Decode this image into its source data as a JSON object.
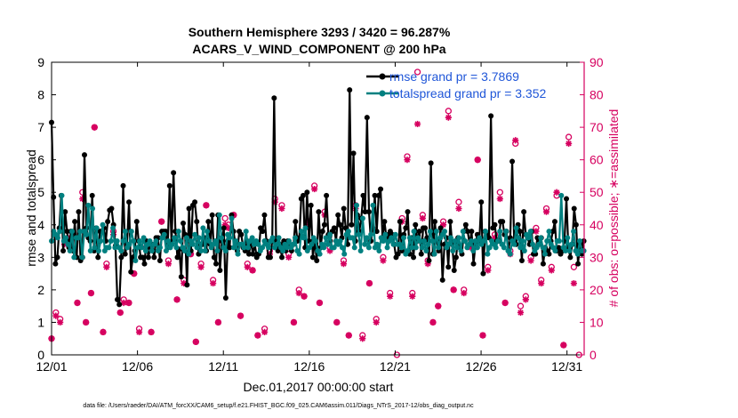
{
  "chart_data": {
    "type": "line",
    "title": "Southern Hemisphere 3293 / 3420 = 96.287%",
    "subtitle": "ACARS_V_WIND_COMPONENT @ 200 hPa",
    "xlabel": "Dec.01,2017 00:00:00 start",
    "ylabel": "rmse and totalspread",
    "ylabel_right": "# of obs: o=possible; ∗=assimilated",
    "footnote": "data file: /Users/raeder/DAI/ATM_forcXX/CAM6_setup/f.e21.FHIST_BGC.f09_025.CAM6assim.011/Diags_NTrS_2017-12/obs_diag_output.nc",
    "xlim": [
      1,
      32
    ],
    "ylim": [
      0,
      9
    ],
    "ylim_right": [
      0,
      90
    ],
    "xticks": [
      1,
      6,
      11,
      16,
      21,
      26,
      31
    ],
    "xtick_labels": [
      "12/01",
      "12/06",
      "12/11",
      "12/16",
      "12/21",
      "12/26",
      "12/31"
    ],
    "yticks": [
      0,
      1,
      2,
      3,
      4,
      5,
      6,
      7,
      8,
      9
    ],
    "yticks_right": [
      0,
      10,
      20,
      30,
      40,
      50,
      60,
      70,
      80,
      90
    ],
    "colors": {
      "rmse": "#000000",
      "totalspread": "#008080",
      "obs": "#d6005f",
      "legend_text": "#1f56d8"
    },
    "legend": {
      "placement": "top-right",
      "entries": [
        "rmse grand pr = 3.7869",
        "totalspread grand pr = 3.352"
      ]
    },
    "series": [
      {
        "name": "rmse",
        "values": [
          7.15,
          4.85,
          2.8,
          3.0,
          3.9,
          4.9,
          3.2,
          4.4,
          3.8,
          3.3,
          3.8,
          3.2,
          4.1,
          3.0,
          4.4,
          2.9,
          3.0,
          6.15,
          3.9,
          3.6,
          3.5,
          4.9,
          3.2,
          3.9,
          3.0,
          3.8,
          3.8,
          3.9,
          3.5,
          4.1,
          4.45,
          4.5,
          4.0,
          3.35,
          1.7,
          1.55,
          3.0,
          5.2,
          3.1,
          3.4,
          4.7,
          2.55,
          3.0,
          3.2,
          4.1,
          3.5,
          3.0,
          3.0,
          2.8,
          3.5,
          3.0,
          3.3,
          3.4,
          3.0,
          3.6,
          3.6,
          2.9,
          3.8,
          3.8,
          3.8,
          3.3,
          5.2,
          3.4,
          5.6,
          3.8,
          3.0,
          3.25,
          2.4,
          4.05,
          3.7,
          2.15,
          4.5,
          3.2,
          4.6,
          4.7,
          4.1,
          3.1,
          3.4,
          3.4,
          3.6,
          3.2,
          4.1,
          3.4,
          4.3,
          3.0,
          2.8,
          4.3,
          2.6,
          3.5,
          3.9,
          1.75,
          3.5,
          3.3,
          4.3,
          3.8,
          3.4,
          3.2,
          3.8,
          3.7,
          3.3,
          3.2,
          3.5,
          3.1,
          3.5,
          3.1,
          3.4,
          3.0,
          3.1,
          3.9,
          3.8,
          4.3,
          3.5,
          3.0,
          3.0,
          3.5,
          7.9,
          3.5,
          3.2,
          3.4,
          3.0,
          3.5,
          3.2,
          3.5,
          3.4,
          3.2,
          3.4,
          4.1,
          3.5,
          3.6,
          4.8,
          4.9,
          3.3,
          5.0,
          3.5,
          4.6,
          3.0,
          3.5,
          2.9,
          4.4,
          3.3,
          3.8,
          4.0,
          4.9,
          3.7,
          3.5,
          3.8,
          3.9,
          3.5,
          4.3,
          4.0,
          3.6,
          4.5,
          3.9,
          3.4,
          8.15,
          4.0,
          6.2,
          3.5,
          4.3,
          3.8,
          4.2,
          4.9,
          4.4,
          7.3,
          4.4,
          3.5,
          3.9,
          4.9,
          3.8,
          4.9,
          5.1,
          3.6,
          4.1,
          3.6,
          3.7,
          3.8,
          3.7,
          3.4,
          3.0,
          3.1,
          4.1,
          3.2,
          3.7,
          3.9,
          4.4,
          3.1,
          3.6,
          3.0,
          4.0,
          3.5,
          3.8,
          3.1,
          3.9,
          3.9,
          3.6,
          2.9,
          5.9,
          3.1,
          4.1,
          3.5,
          3.2,
          3.9,
          2.3,
          3.4,
          3.6,
          2.7,
          4.1,
          3.4,
          2.6,
          3.0,
          3.6,
          3.3,
          3.1,
          3.8,
          4.0,
          3.8,
          3.4,
          3.8,
          2.8,
          3.4,
          3.7,
          3.5,
          4.7,
          2.5,
          3.8,
          3.7,
          3.6,
          7.35,
          3.9,
          4.0,
          3.5,
          3.5,
          4.1,
          4.1,
          3.7,
          3.8,
          3.2,
          3.6,
          5.95,
          3.5,
          3.4,
          4.0,
          3.8,
          2.9,
          4.4,
          3.7,
          3.6,
          3.4,
          3.8,
          3.1,
          3.1,
          3.6,
          3.4,
          3.6,
          2.8,
          3.3,
          3.2,
          3.1,
          3.5,
          3.8,
          4.1,
          3.2,
          3.3,
          3.1,
          3.2,
          3.5,
          4.8,
          3.3,
          3.0,
          3.4,
          4.5,
          4.0,
          2.8,
          3.4,
          3.1,
          3.5
        ]
      },
      {
        "name": "totalspread",
        "values": [
          3.5,
          3.8,
          3.7,
          3.6,
          3.8,
          4.9,
          3.5,
          3.6,
          3.4,
          3.2,
          3.8,
          3.0,
          3.6,
          3.6,
          3.8,
          3.0,
          3.8,
          3.7,
          4.6,
          3.2,
          4.5,
          3.3,
          3.9,
          3.2,
          3.5,
          4.0,
          3.2,
          3.3,
          3.3,
          3.5,
          3.9,
          3.3,
          3.5,
          3.3,
          3.2,
          3.5,
          3.8,
          3.3,
          3.4,
          3.8,
          3.5,
          2.9,
          3.3,
          3.5,
          3.3,
          3.6,
          3.2,
          3.4,
          3.5,
          3.2,
          3.4,
          3.5,
          3.2,
          3.3,
          3.6,
          3.7,
          3.2,
          3.5,
          3.3,
          3.4,
          3.6,
          3.3,
          3.8,
          3.5,
          3.3,
          3.2,
          3.6,
          3.1,
          3.5,
          3.4,
          3.7,
          3.3,
          3.6,
          3.2,
          3.9,
          3.2,
          3.8,
          3.5,
          3.3,
          3.4,
          3.5,
          3.2,
          4.3,
          3.6,
          3.3,
          3.2,
          3.7,
          3.6,
          4.2,
          3.3,
          3.5,
          3.1,
          3.4,
          3.4,
          3.3,
          3.8,
          3.3,
          3.5,
          3.6,
          3.4,
          3.5,
          3.4,
          3.2,
          3.3,
          3.5,
          3.4,
          3.3,
          3.5,
          3.6,
          3.3,
          3.4,
          3.6,
          3.3,
          3.2,
          3.4,
          3.3,
          3.5,
          3.3,
          3.4,
          3.6,
          3.2,
          3.1,
          3.8,
          3.6,
          3.9,
          3.2,
          3.3,
          3.4,
          3.6,
          3.5,
          3.2,
          3.1,
          3.4,
          3.3,
          3.6,
          3.4,
          3.7,
          3.3,
          3.3,
          3.5,
          3.4,
          3.5,
          3.3,
          3.1,
          3.7,
          3.8,
          3.6,
          3.6,
          3.3,
          4.6,
          3.7,
          3.2,
          4.2,
          3.4,
          3.6,
          3.3,
          3.7,
          4.6,
          3.3,
          3.4,
          3.2,
          3.6,
          3.5,
          3.7,
          3.3,
          3.5,
          3.6,
          3.4,
          3.7,
          3.4,
          3.4,
          3.3,
          3.6,
          3.1,
          3.2,
          3.6,
          3.3,
          3.8,
          3.3,
          3.6,
          3.5,
          3.3,
          3.5,
          3.2,
          3.4,
          3.8,
          3.5,
          3.1,
          3.8,
          3.3,
          3.6,
          3.7,
          3.8,
          3.3,
          3.4,
          3.6,
          3.2,
          3.5,
          3.3,
          3.6,
          3.2,
          3.8,
          3.5,
          3.3,
          3.4,
          3.5,
          3.2,
          3.5,
          3.3,
          3.6,
          3.4,
          3.5,
          3.8,
          3.1,
          3.3,
          3.5,
          3.4,
          3.3,
          3.5,
          3.8,
          3.4,
          3.3,
          3.8,
          3.2,
          3.1,
          3.5,
          3.4,
          3.9,
          3.6,
          3.3,
          3.5,
          3.2,
          3.7,
          3.6,
          3.8,
          3.4,
          3.2,
          3.3,
          3.4,
          3.6,
          3.3,
          3.1,
          3.5,
          3.8,
          3.4,
          3.3,
          3.2,
          3.5,
          3.5,
          4.9,
          3.3,
          3.2,
          3.6,
          3.2,
          3.4,
          3.8,
          3.2,
          3.1,
          3.5,
          3.2,
          3.2
        ]
      }
    ],
    "obs_possible": [
      {
        "x": 1.0,
        "y": 5
      },
      {
        "x": 1.25,
        "y": 13
      },
      {
        "x": 1.5,
        "y": 11
      },
      {
        "x": 1.75,
        "y": 35
      },
      {
        "x": 2.1,
        "y": 37
      },
      {
        "x": 2.5,
        "y": 16
      },
      {
        "x": 2.8,
        "y": 50
      },
      {
        "x": 3.0,
        "y": 10
      },
      {
        "x": 3.3,
        "y": 19
      },
      {
        "x": 3.5,
        "y": 70
      },
      {
        "x": 4.0,
        "y": 7
      },
      {
        "x": 4.2,
        "y": 28
      },
      {
        "x": 4.6,
        "y": 38
      },
      {
        "x": 5.0,
        "y": 13
      },
      {
        "x": 5.2,
        "y": 17
      },
      {
        "x": 5.5,
        "y": 16
      },
      {
        "x": 5.8,
        "y": 25
      },
      {
        "x": 6.1,
        "y": 8
      },
      {
        "x": 6.5,
        "y": 33
      },
      {
        "x": 6.8,
        "y": 7
      },
      {
        "x": 7.4,
        "y": 41
      },
      {
        "x": 7.8,
        "y": 29
      },
      {
        "x": 8.3,
        "y": 17
      },
      {
        "x": 8.7,
        "y": 23
      },
      {
        "x": 9.1,
        "y": 31
      },
      {
        "x": 9.4,
        "y": 4
      },
      {
        "x": 9.7,
        "y": 28
      },
      {
        "x": 10.0,
        "y": 46
      },
      {
        "x": 10.4,
        "y": 23
      },
      {
        "x": 10.7,
        "y": 10
      },
      {
        "x": 11.1,
        "y": 42
      },
      {
        "x": 11.3,
        "y": 40
      },
      {
        "x": 11.6,
        "y": 43
      },
      {
        "x": 12.0,
        "y": 12
      },
      {
        "x": 12.4,
        "y": 28
      },
      {
        "x": 12.7,
        "y": 26
      },
      {
        "x": 13.0,
        "y": 6
      },
      {
        "x": 13.4,
        "y": 8
      },
      {
        "x": 13.7,
        "y": 32
      },
      {
        "x": 14.0,
        "y": 48
      },
      {
        "x": 14.4,
        "y": 46
      },
      {
        "x": 14.8,
        "y": 31
      },
      {
        "x": 15.1,
        "y": 10
      },
      {
        "x": 15.4,
        "y": 20
      },
      {
        "x": 15.7,
        "y": 18
      },
      {
        "x": 16.0,
        "y": 41
      },
      {
        "x": 16.3,
        "y": 52
      },
      {
        "x": 16.6,
        "y": 16
      },
      {
        "x": 16.9,
        "y": 44
      },
      {
        "x": 17.2,
        "y": 33
      },
      {
        "x": 17.6,
        "y": 10
      },
      {
        "x": 18.0,
        "y": 29
      },
      {
        "x": 18.3,
        "y": 6
      },
      {
        "x": 18.7,
        "y": 46
      },
      {
        "x": 19.1,
        "y": 6
      },
      {
        "x": 19.5,
        "y": 22
      },
      {
        "x": 19.9,
        "y": 11
      },
      {
        "x": 20.3,
        "y": 30
      },
      {
        "x": 20.7,
        "y": 19
      },
      {
        "x": 21.1,
        "y": 0
      },
      {
        "x": 21.4,
        "y": 42
      },
      {
        "x": 21.7,
        "y": 61
      },
      {
        "x": 22.0,
        "y": 19
      },
      {
        "x": 22.3,
        "y": 87
      },
      {
        "x": 22.6,
        "y": 43
      },
      {
        "x": 22.9,
        "y": 29
      },
      {
        "x": 23.2,
        "y": 10
      },
      {
        "x": 23.5,
        "y": 15
      },
      {
        "x": 23.8,
        "y": 41
      },
      {
        "x": 24.1,
        "y": 75
      },
      {
        "x": 24.4,
        "y": 20
      },
      {
        "x": 24.7,
        "y": 47
      },
      {
        "x": 25.0,
        "y": 20
      },
      {
        "x": 25.4,
        "y": 34
      },
      {
        "x": 25.8,
        "y": 60
      },
      {
        "x": 26.1,
        "y": 6
      },
      {
        "x": 26.4,
        "y": 27
      },
      {
        "x": 26.8,
        "y": 37
      },
      {
        "x": 27.1,
        "y": 50
      },
      {
        "x": 27.4,
        "y": 16
      },
      {
        "x": 27.7,
        "y": 32
      },
      {
        "x": 28.0,
        "y": 65
      },
      {
        "x": 28.3,
        "y": 15
      },
      {
        "x": 28.6,
        "y": 18
      },
      {
        "x": 28.9,
        "y": 30
      },
      {
        "x": 29.2,
        "y": 39
      },
      {
        "x": 29.5,
        "y": 23
      },
      {
        "x": 29.8,
        "y": 45
      },
      {
        "x": 30.1,
        "y": 27
      },
      {
        "x": 30.4,
        "y": 49
      },
      {
        "x": 30.8,
        "y": 3
      },
      {
        "x": 31.1,
        "y": 67
      },
      {
        "x": 31.4,
        "y": 27
      },
      {
        "x": 31.7,
        "y": 0
      }
    ],
    "obs_assimilated": [
      {
        "x": 1.0,
        "y": 5
      },
      {
        "x": 1.25,
        "y": 12
      },
      {
        "x": 1.5,
        "y": 10
      },
      {
        "x": 1.75,
        "y": 34
      },
      {
        "x": 2.1,
        "y": 36
      },
      {
        "x": 2.5,
        "y": 16
      },
      {
        "x": 2.8,
        "y": 48
      },
      {
        "x": 3.0,
        "y": 10
      },
      {
        "x": 3.3,
        "y": 19
      },
      {
        "x": 3.5,
        "y": 70
      },
      {
        "x": 4.0,
        "y": 7
      },
      {
        "x": 4.2,
        "y": 27
      },
      {
        "x": 4.6,
        "y": 37
      },
      {
        "x": 5.0,
        "y": 13
      },
      {
        "x": 5.2,
        "y": 16
      },
      {
        "x": 5.5,
        "y": 16
      },
      {
        "x": 5.8,
        "y": 25
      },
      {
        "x": 6.1,
        "y": 7
      },
      {
        "x": 6.5,
        "y": 33
      },
      {
        "x": 6.8,
        "y": 7
      },
      {
        "x": 7.4,
        "y": 41
      },
      {
        "x": 7.8,
        "y": 28
      },
      {
        "x": 8.3,
        "y": 17
      },
      {
        "x": 8.7,
        "y": 22
      },
      {
        "x": 9.1,
        "y": 31
      },
      {
        "x": 9.4,
        "y": 4
      },
      {
        "x": 9.7,
        "y": 27
      },
      {
        "x": 10.0,
        "y": 46
      },
      {
        "x": 10.4,
        "y": 22
      },
      {
        "x": 10.7,
        "y": 10
      },
      {
        "x": 11.1,
        "y": 40
      },
      {
        "x": 11.3,
        "y": 39
      },
      {
        "x": 11.6,
        "y": 43
      },
      {
        "x": 12.0,
        "y": 12
      },
      {
        "x": 12.4,
        "y": 27
      },
      {
        "x": 12.7,
        "y": 26
      },
      {
        "x": 13.0,
        "y": 6
      },
      {
        "x": 13.4,
        "y": 7
      },
      {
        "x": 13.7,
        "y": 31
      },
      {
        "x": 14.0,
        "y": 47
      },
      {
        "x": 14.4,
        "y": 45
      },
      {
        "x": 14.8,
        "y": 30
      },
      {
        "x": 15.1,
        "y": 10
      },
      {
        "x": 15.4,
        "y": 19
      },
      {
        "x": 15.7,
        "y": 18
      },
      {
        "x": 16.0,
        "y": 40
      },
      {
        "x": 16.3,
        "y": 51
      },
      {
        "x": 16.6,
        "y": 16
      },
      {
        "x": 16.9,
        "y": 43
      },
      {
        "x": 17.2,
        "y": 32
      },
      {
        "x": 17.6,
        "y": 10
      },
      {
        "x": 18.0,
        "y": 28
      },
      {
        "x": 18.3,
        "y": 6
      },
      {
        "x": 18.7,
        "y": 45
      },
      {
        "x": 19.1,
        "y": 5
      },
      {
        "x": 19.5,
        "y": 22
      },
      {
        "x": 19.9,
        "y": 10
      },
      {
        "x": 20.3,
        "y": 29
      },
      {
        "x": 20.7,
        "y": 18
      },
      {
        "x": 21.4,
        "y": 41
      },
      {
        "x": 21.7,
        "y": 60
      },
      {
        "x": 22.0,
        "y": 18
      },
      {
        "x": 22.3,
        "y": 71
      },
      {
        "x": 22.6,
        "y": 42
      },
      {
        "x": 22.9,
        "y": 28
      },
      {
        "x": 23.2,
        "y": 10
      },
      {
        "x": 23.5,
        "y": 15
      },
      {
        "x": 23.8,
        "y": 40
      },
      {
        "x": 24.1,
        "y": 73
      },
      {
        "x": 24.4,
        "y": 20
      },
      {
        "x": 24.7,
        "y": 45
      },
      {
        "x": 25.0,
        "y": 19
      },
      {
        "x": 25.4,
        "y": 33
      },
      {
        "x": 25.8,
        "y": 60
      },
      {
        "x": 26.1,
        "y": 6
      },
      {
        "x": 26.4,
        "y": 26
      },
      {
        "x": 26.8,
        "y": 36
      },
      {
        "x": 27.1,
        "y": 48
      },
      {
        "x": 27.4,
        "y": 16
      },
      {
        "x": 27.7,
        "y": 31
      },
      {
        "x": 28.0,
        "y": 66
      },
      {
        "x": 28.3,
        "y": 13
      },
      {
        "x": 28.6,
        "y": 17
      },
      {
        "x": 28.9,
        "y": 29
      },
      {
        "x": 29.2,
        "y": 38
      },
      {
        "x": 29.5,
        "y": 22
      },
      {
        "x": 29.8,
        "y": 44
      },
      {
        "x": 30.1,
        "y": 26
      },
      {
        "x": 30.4,
        "y": 50
      },
      {
        "x": 30.8,
        "y": 3
      },
      {
        "x": 31.1,
        "y": 65
      },
      {
        "x": 31.4,
        "y": 22
      }
    ]
  }
}
